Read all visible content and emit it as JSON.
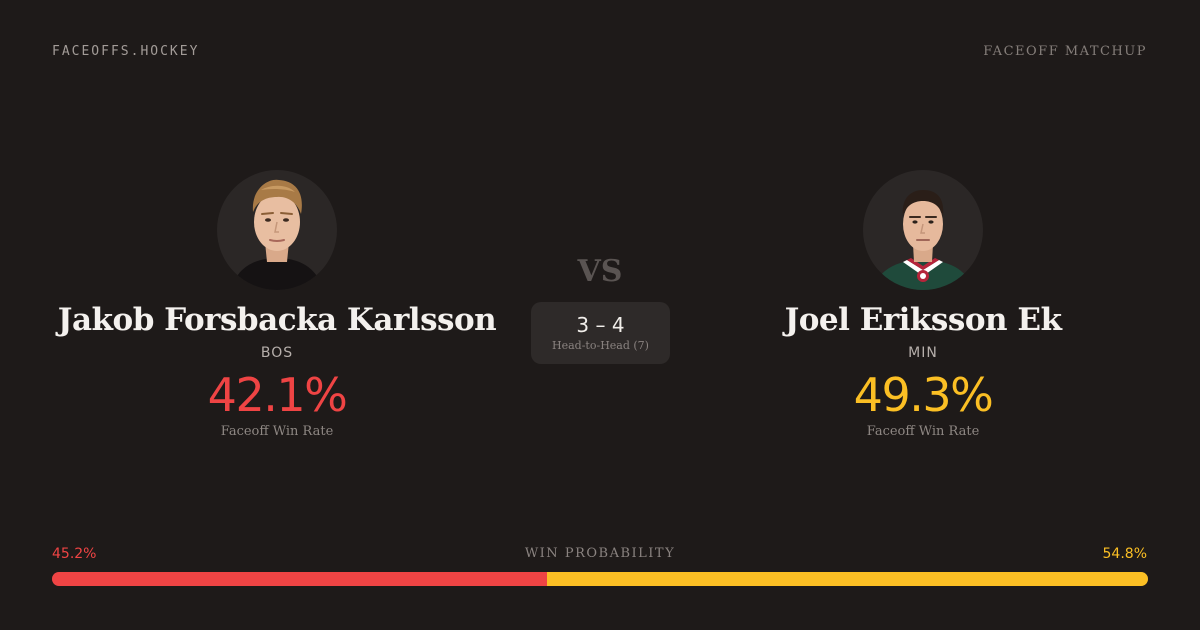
{
  "header": {
    "brand": "FACEOFFS.HOCKEY",
    "section": "FACEOFF MATCHUP"
  },
  "player_left": {
    "name": "Jakob Forsbacka Karlsson",
    "team": "BOS",
    "win_rate": "42.1%",
    "win_rate_label": "Faceoff Win Rate",
    "avatar_icon": "player-headshot-icon",
    "accent_color": "#ef4444"
  },
  "player_right": {
    "name": "Joel Eriksson Ek",
    "team": "MIN",
    "win_rate": "49.3%",
    "win_rate_label": "Faceoff Win Rate",
    "avatar_icon": "player-headshot-icon",
    "accent_color": "#fbbf24"
  },
  "versus": {
    "label": "VS",
    "h2h_score": "3 – 4",
    "h2h_label": "Head-to-Head (7)"
  },
  "win_probability": {
    "title": "WIN PROBABILITY",
    "left_label": "45.2%",
    "right_label": "54.8%",
    "left_value": 45.2,
    "right_value": 54.8
  }
}
